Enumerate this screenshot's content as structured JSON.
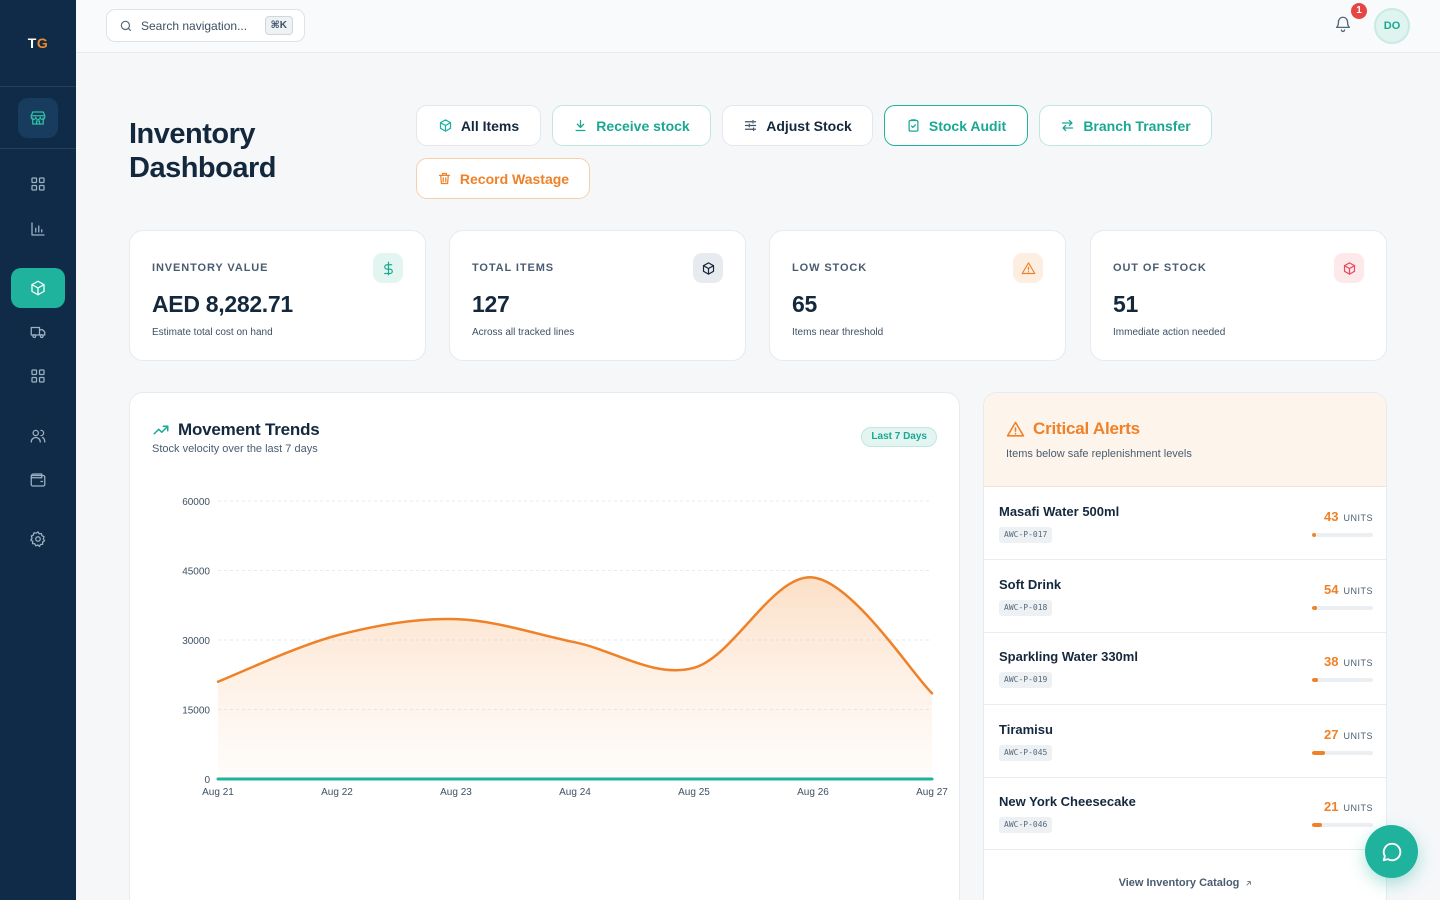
{
  "sidebar": {
    "logo_prefix": "T",
    "logo_accent": "G",
    "items": [
      {
        "name": "store",
        "icon": "store-icon"
      },
      {
        "name": "dashboard",
        "icon": "grid-icon"
      },
      {
        "name": "reports",
        "icon": "bar-chart-icon"
      },
      {
        "name": "inventory",
        "icon": "box-icon",
        "active": true
      },
      {
        "name": "delivery",
        "icon": "truck-icon"
      },
      {
        "name": "apps",
        "icon": "grid-icon"
      },
      {
        "name": "users",
        "icon": "users-icon"
      },
      {
        "name": "wallet",
        "icon": "wallet-icon"
      },
      {
        "name": "settings",
        "icon": "gear-icon"
      }
    ]
  },
  "topbar": {
    "search_placeholder": "Search navigation...",
    "shortcut": "⌘K",
    "notification_count": "1",
    "avatar_initials": "DO"
  },
  "header": {
    "title": "Inventory Dashboard",
    "actions": {
      "all_items": "All Items",
      "receive": "Receive stock",
      "adjust": "Adjust Stock",
      "audit": "Stock Audit",
      "transfer": "Branch Transfer",
      "wastage": "Record Wastage"
    }
  },
  "stats": [
    {
      "label": "INVENTORY VALUE",
      "value": "AED 8,282.71",
      "sub": "Estimate total cost on hand",
      "icon": "dollar-icon",
      "color": "#1aa893"
    },
    {
      "label": "TOTAL ITEMS",
      "value": "127",
      "sub": "Across all tracked lines",
      "icon": "box-icon",
      "color": "#14283d"
    },
    {
      "label": "LOW STOCK",
      "value": "65",
      "sub": "Items near threshold",
      "icon": "warning-icon",
      "color": "#ef8128"
    },
    {
      "label": "OUT OF STOCK",
      "value": "51",
      "sub": "Immediate action needed",
      "icon": "box-icon",
      "color": "#e54b5a"
    }
  ],
  "movement": {
    "title": "Movement Trends",
    "subtitle": "Stock velocity over the last 7 days",
    "range_badge": "Last 7 Days"
  },
  "chart_data": {
    "type": "area",
    "title": "Movement Trends",
    "categories": [
      "Aug 21",
      "Aug 22",
      "Aug 23",
      "Aug 24",
      "Aug 25",
      "Aug 26",
      "Aug 27"
    ],
    "series": [
      {
        "values": [
          21000,
          31000,
          34500,
          29500,
          24000,
          43500,
          18500
        ],
        "color": "#ef8128"
      },
      {
        "values": [
          0,
          0,
          0,
          0,
          0,
          0,
          0
        ],
        "color": "#1fb39e"
      }
    ],
    "yticks": [
      0,
      15000,
      30000,
      45000,
      60000
    ],
    "ylim": [
      0,
      60000
    ],
    "grid": true
  },
  "alerts": {
    "title": "Critical Alerts",
    "subtitle": "Items below safe replenishment levels",
    "unit_label": "UNITS",
    "items": [
      {
        "name": "Masafi Water 500ml",
        "sku": "AWC-P-017",
        "qty": "43",
        "level": 0.07
      },
      {
        "name": "Soft Drink",
        "sku": "AWC-P-018",
        "qty": "54",
        "level": 0.09
      },
      {
        "name": "Sparkling Water 330ml",
        "sku": "AWC-P-019",
        "qty": "38",
        "level": 0.1
      },
      {
        "name": "Tiramisu",
        "sku": "AWC-P-045",
        "qty": "27",
        "level": 0.22
      },
      {
        "name": "New York Cheesecake",
        "sku": "AWC-P-046",
        "qty": "21",
        "level": 0.16
      }
    ],
    "view_link": "View Inventory Catalog"
  }
}
